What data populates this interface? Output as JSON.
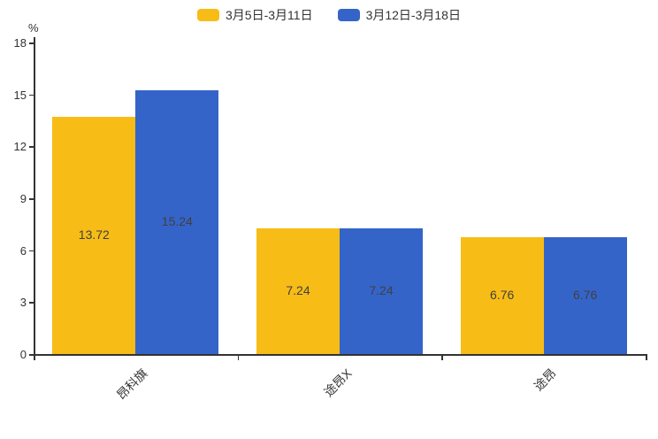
{
  "chart_data": {
    "type": "bar",
    "categories": [
      "昂科旗",
      "途昂X",
      "途昂"
    ],
    "series": [
      {
        "name": "3月5日-3月11日",
        "color": "#F7BC16",
        "values": [
          13.72,
          7.24,
          6.76
        ]
      },
      {
        "name": "3月12日-3月18日",
        "color": "#3564C9",
        "values": [
          15.24,
          7.24,
          6.76
        ]
      }
    ],
    "title": "",
    "xlabel": "",
    "ylabel": "%",
    "ylim": [
      0,
      18
    ],
    "yticks": [
      18,
      15,
      12,
      9,
      6,
      3,
      0
    ],
    "grid": false,
    "legend_position": "top",
    "value_labels_shown": true
  },
  "axis": {
    "unit_label": "%"
  },
  "colors": {
    "axis": "#333333",
    "text": "#333333",
    "value_label": "#404040",
    "background": "#ffffff"
  }
}
